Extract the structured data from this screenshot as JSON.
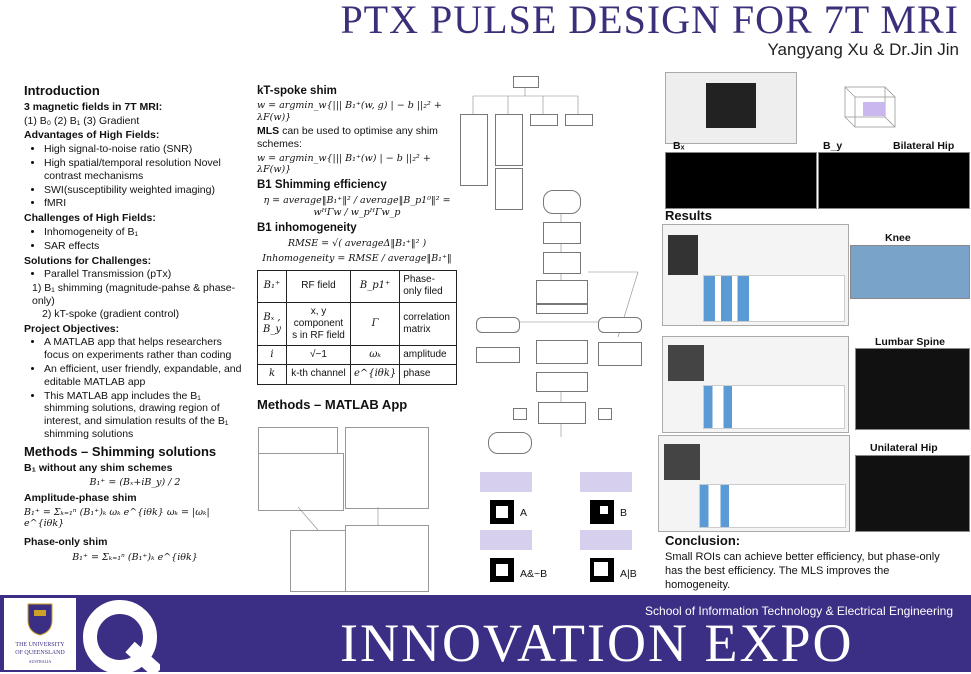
{
  "header": {
    "title": "PTX PULSE DESIGN FOR 7T MRI",
    "authors": "Yangyang Xu & Dr.Jin Jin"
  },
  "intro": {
    "heading": "Introduction",
    "fields_heading": "3 magnetic fields in 7T MRI:",
    "fields_line": "(1) B₀ (2) B₁ (3) Gradient",
    "adv_heading": "Advantages of High Fields:",
    "adv": [
      "High signal-to-noise ratio (SNR)",
      "High spatial/temporal resolution Novel contrast mechanisms",
      "SWI(susceptibility weighted imaging)",
      "fMRI"
    ],
    "chal_heading": "Challenges of High Fields:",
    "chal": [
      "Inhomogeneity of B₁",
      "SAR effects"
    ],
    "sol_heading": "Solutions for Challenges:",
    "sol": [
      "Parallel Transmission (pTx)"
    ],
    "sol_sub1": "1) B₁ shimming (magnitude-pahse & phase-only)",
    "sol_sub2": "2) kT-spoke (gradient control)",
    "obj_heading": "Project Objectives:",
    "obj": [
      "A MATLAB app that helps researchers focus on experiments rather than coding",
      "An efficient, user friendly, expandable, and editable MATLAB app",
      "This MATLAB app includes the B₁ shimming solutions, drawing region of interest, and simulation results of the B₁ shimming solutions"
    ]
  },
  "methods": {
    "heading": "Methods – Shimming solutions",
    "noshim": "B₁ without any shim schemes",
    "eq_noshim": "B₁⁺ = (Bₓ+iB_y) / 2",
    "amp_heading": "Amplitude-phase shim",
    "eq_amp": "B₁⁺ = Σₖ₌₁ⁿ (B₁⁺)ₖ ωₖ e^{iθk}      ωₖ = |ωₖ| e^{iθk}",
    "phase_heading": "Phase-only shim",
    "eq_phase": "B₁⁺ = Σₖ₌₁ⁿ (B₁⁺)ₖ e^{iθk}"
  },
  "kt": {
    "heading": "kT-spoke shim",
    "eq1": "w = argmin_w{||| B₁⁺(w, g) | − b ||₂² + λF(w)}",
    "mls": "MLS",
    "mls_text": " can be used to optimise any shim schemes:",
    "eq2": "w = argmin_w{||| B₁⁺(w) | − b ||₂² + λF(w)}",
    "eff_heading": "B1 Shimming efficiency",
    "eq_eff": "η = average‖B₁⁺‖² / average‖B_p1⁰‖² = wᴴΓw / w_pᴴΓw_p",
    "inh_heading": "B1 inhomogeneity",
    "eq_rmse": "RMSE = √( averageΔ‖B₁⁺‖² )",
    "eq_inh": "Inhomogeneity = RMSE / average‖B₁⁺‖"
  },
  "symbols": [
    {
      "s1": "B₁⁺",
      "d1": "RF field",
      "s2": "B_p1⁺",
      "d2": "Phase-only filed"
    },
    {
      "s1": "Bₓ , B_y",
      "d1": "x, y component s in RF field",
      "s2": "Γ",
      "d2": "correlation matrix"
    },
    {
      "s1": "i",
      "d1": "√−1",
      "s2": "ωₖ",
      "d2": "amplitude"
    },
    {
      "s1": "k",
      "d1": "k-th channel",
      "s2": "e^{iθk}",
      "d2": "phase"
    }
  ],
  "matlab": {
    "heading": "Methods – MATLAB App"
  },
  "roi": {
    "labels": [
      "A",
      "B",
      "A&~B",
      "A|B"
    ]
  },
  "results": {
    "heading": "Results",
    "bx": "Bₓ",
    "by": "B_y",
    "hip": "Bilateral Hip",
    "knee": "Knee",
    "spine": "Lumbar Spine",
    "uhip": "Unilateral Hip"
  },
  "conclusion": {
    "heading": "Conclusion:",
    "text": "Small ROIs can achieve better efficiency, but phase-only has the best efficiency. The MLS improves the homogeneity."
  },
  "footer": {
    "school": "School of Information Technology & Electrical Engineering",
    "expo": "INNOVATION EXPO",
    "uq1": "THE UNIVERSITY",
    "uq2": "OF QUEENSLAND",
    "uq3": "AUSTRALIA"
  }
}
